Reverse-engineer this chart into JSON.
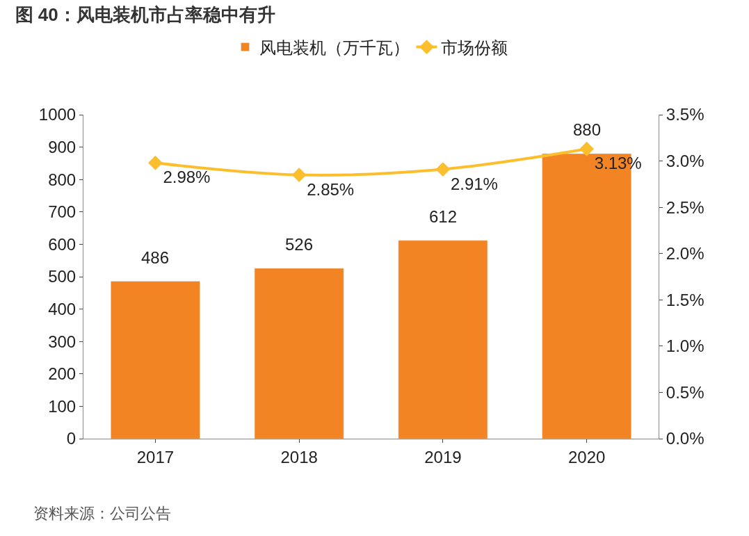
{
  "chart_data": {
    "type": "bar",
    "title": "图 40：风电装机市占率稳中有升",
    "categories": [
      "2017",
      "2018",
      "2019",
      "2020"
    ],
    "series": [
      {
        "name": "风电装机（万千瓦）",
        "color": "#f28424",
        "values": [
          486,
          526,
          612,
          880
        ]
      },
      {
        "name": "市场份额",
        "type": "line",
        "axis": "y2",
        "color": "#fbbf2d",
        "marker": "diamond",
        "values": [
          2.98,
          2.85,
          2.91,
          3.13
        ],
        "value_labels": [
          "2.98%",
          "2.85%",
          "2.91%",
          "3.13%"
        ]
      }
    ],
    "data_labels": true,
    "ylim": [
      0,
      1000
    ],
    "yticks": [
      0,
      100,
      200,
      300,
      400,
      500,
      600,
      700,
      800,
      900,
      1000
    ],
    "y2lim": [
      0,
      3.5
    ],
    "y2ticks": [
      {
        "value": 0,
        "label": "0.0%"
      },
      {
        "value": 0.5,
        "label": "0.5%"
      },
      {
        "value": 1,
        "label": "1.0%"
      },
      {
        "value": 1.5,
        "label": "1.5%"
      },
      {
        "value": 2,
        "label": "2.0%"
      },
      {
        "value": 2.5,
        "label": "2.5%"
      },
      {
        "value": 3,
        "label": "3.0%"
      },
      {
        "value": 3.5,
        "label": "3.5%"
      }
    ],
    "legend": "top",
    "annotations": [
      "资料来源：公司公告"
    ]
  }
}
